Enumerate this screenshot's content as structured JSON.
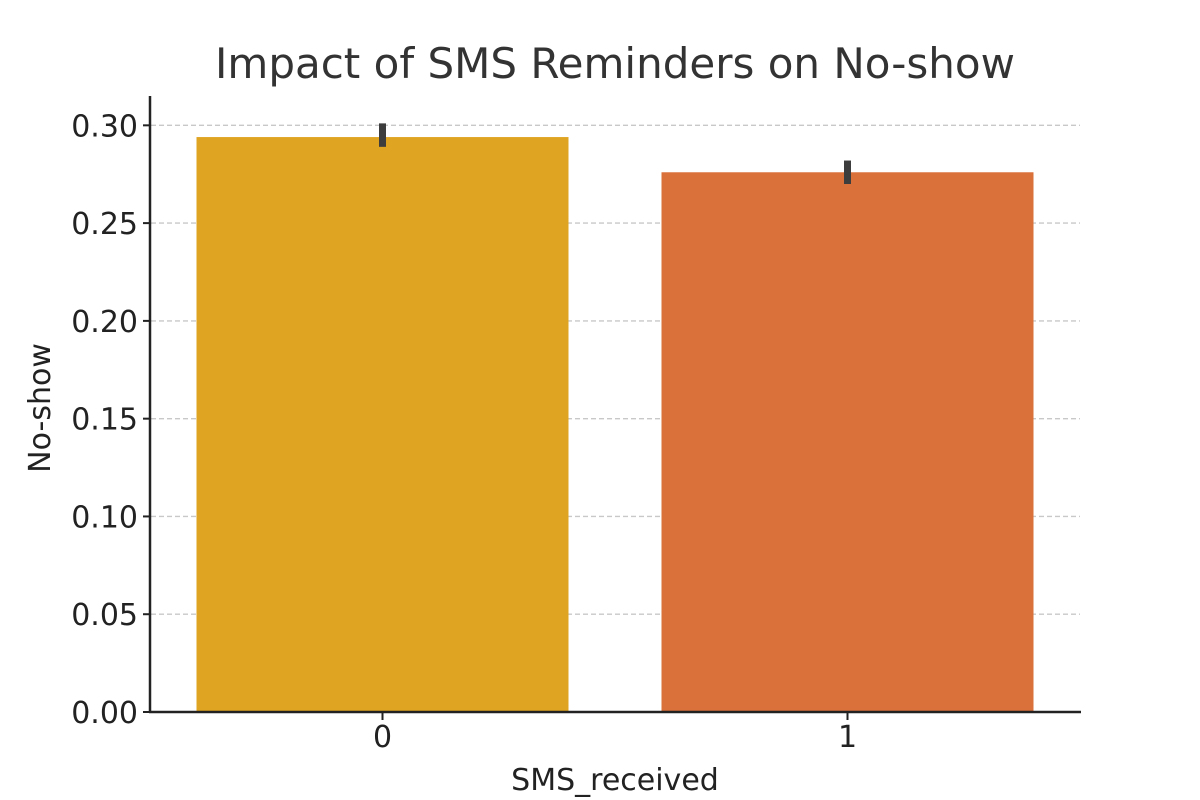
{
  "chart_data": {
    "type": "bar",
    "title": "Impact of SMS Reminders on No-show",
    "xlabel": "SMS_received",
    "ylabel": "No-show",
    "categories": [
      "0",
      "1"
    ],
    "values": [
      0.294,
      0.276
    ],
    "error_bars": [
      [
        0.289,
        0.301
      ],
      [
        0.27,
        0.282
      ]
    ],
    "ylim": [
      0,
      0.315
    ],
    "yticks": [
      "0.00",
      "0.05",
      "0.10",
      "0.15",
      "0.20",
      "0.25",
      "0.30"
    ],
    "ytick_values": [
      0,
      0.05,
      0.1,
      0.15,
      0.2,
      0.25,
      0.3
    ],
    "grid": "horizontal dashed",
    "colors": [
      "#dfa421",
      "#da703a"
    ],
    "error_color": "#3d3d3d"
  }
}
